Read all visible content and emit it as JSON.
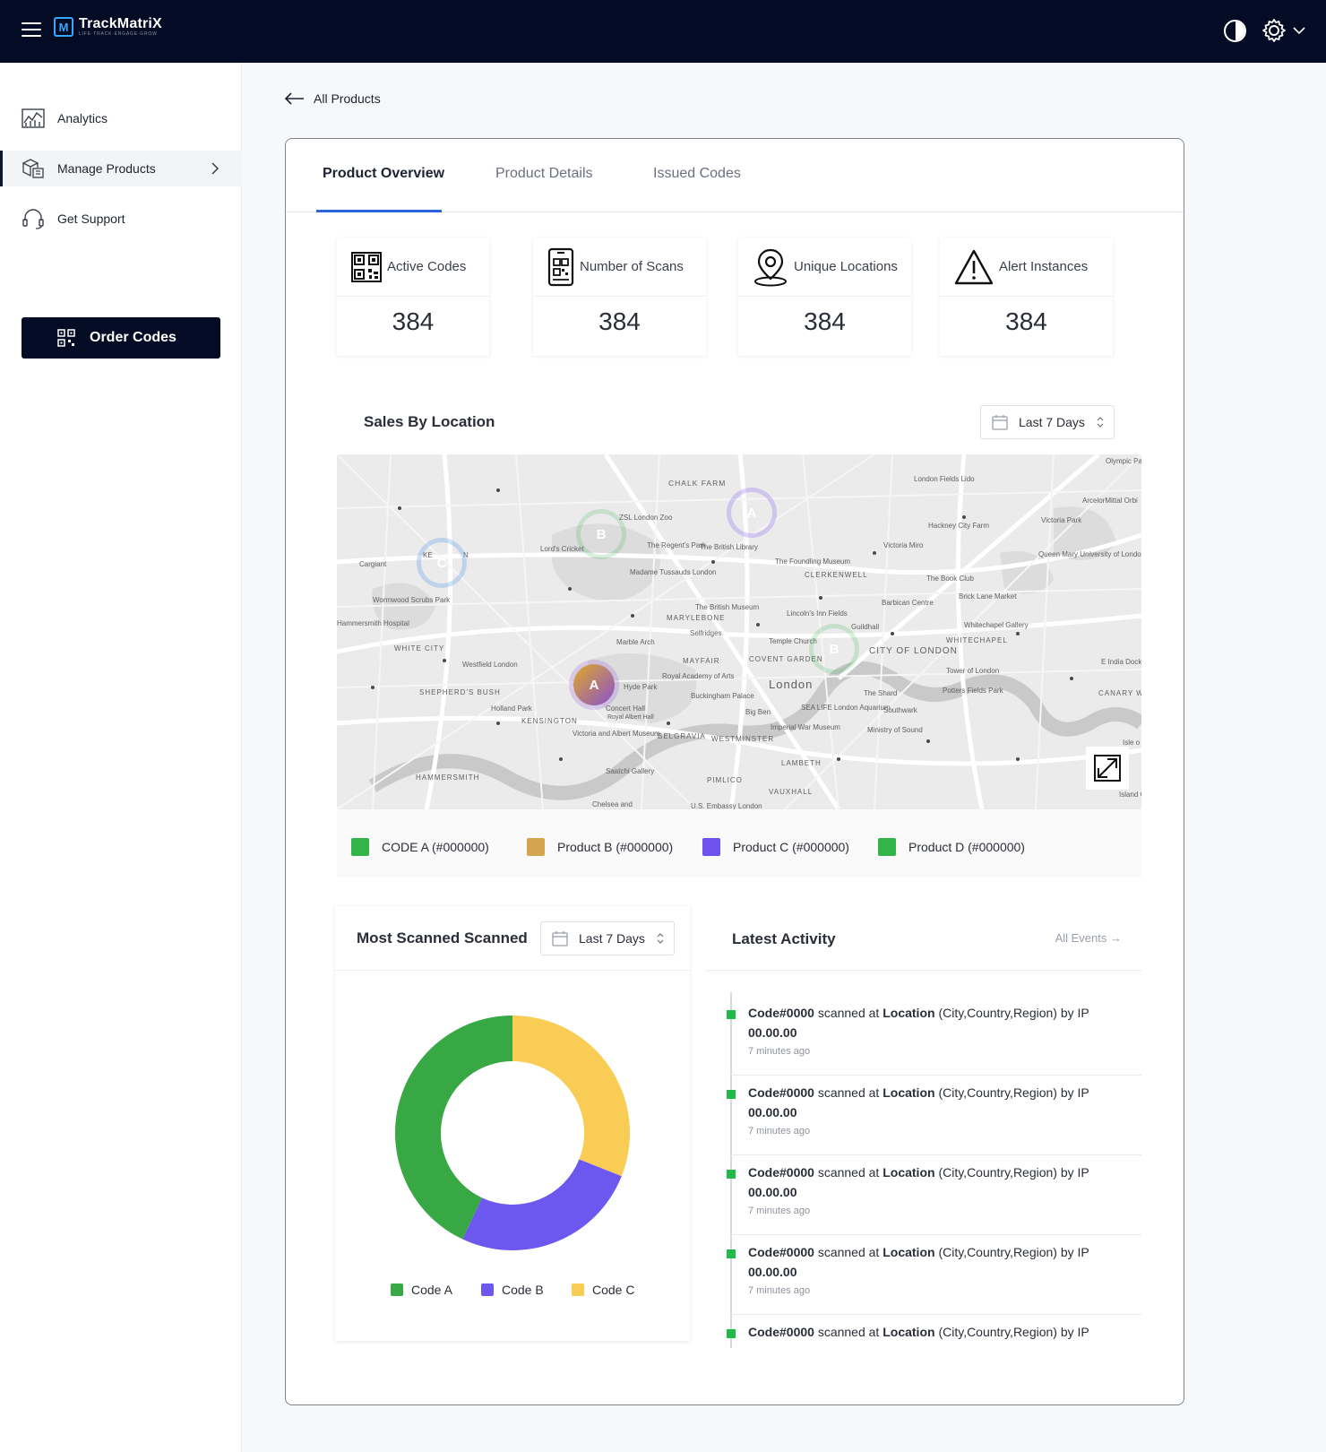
{
  "app": {
    "name": "TrackMatriX",
    "tagline": "LIFE·TRACK·ENGAGE·GROW"
  },
  "sidebar": {
    "items": [
      {
        "label": "Analytics",
        "icon": "analytics-icon"
      },
      {
        "label": "Manage Products",
        "icon": "boxes-icon"
      },
      {
        "label": "Get Support",
        "icon": "headset-icon"
      }
    ],
    "order_button": "Order Codes"
  },
  "back_link": "All Products",
  "tabs": [
    "Product Overview",
    "Product Details",
    "Issued Codes"
  ],
  "stats": [
    {
      "label": "Active Codes",
      "value": "384",
      "icon": "qr-code-icon"
    },
    {
      "label": "Number of Scans",
      "value": "384",
      "icon": "phone-scan-icon"
    },
    {
      "label": "Unique Locations",
      "value": "384",
      "icon": "location-pin-icon"
    },
    {
      "label": "Alert Instances",
      "value": "384",
      "icon": "warning-icon"
    }
  ],
  "sales_by_location": {
    "title": "Sales By Location",
    "range": "Last 7 Days",
    "map_labels": {
      "l1": "CHALK FARM",
      "l2": "ZSL London Zoo",
      "l3": "The British Library",
      "l4": "London Fields Lido",
      "l5": "Hackney City Farm",
      "l6": "Victoria Park",
      "l7": "Olympic Pa",
      "l8": "ArcelorMittal Orbi",
      "l9": "Cargiant",
      "l10": "Lord's Cricket",
      "l11": "The Regent's Park",
      "l12": "Madame Tussauds London",
      "l13": "The Foundling Museum",
      "l14": "Victoria Miro",
      "l15": "CLERKENWELL",
      "l16": "Queen Mary University of London",
      "l17": "The Book Club",
      "l18": "Brick Lane Market",
      "l19": "Wormwood Scrubs Park",
      "l20": "The British Museum",
      "l21": "Barbican Centre",
      "l22": "Whitechapel Gallery",
      "l23": "MARYLEBONE",
      "l24": "Selfridges",
      "l25": "Lincoln's Inn Fields",
      "l26": "WHITECHAPEL",
      "l27": "Hammersmith Hospital",
      "l28": "Marble Arch",
      "l29": "Temple Church",
      "l30": "Guildhall",
      "l31": "CITY OF LONDON",
      "l32": "WHITE CITY",
      "l33": "Westfield London",
      "l34": "MAYFAIR",
      "l35": "COVENT GARDEN",
      "l36": "Tower of London",
      "l37": "E India Dock Rd",
      "l38": "Royal Academy of Arts",
      "l39": "London",
      "l40": "SHEPHERD'S BUSH",
      "l41": "Hyde Park",
      "l42": "Buckingham Palace",
      "l43": "The Shard",
      "l44": "Potters Fields Park",
      "l45": "CANARY WHAR",
      "l46": "Holland Park",
      "l47": "Concert Hall",
      "l48": "Royal Albert Hall",
      "l49": "Big Ben",
      "l50": "SEA LIFE London Aquarium",
      "l51": "Southwark",
      "l52": "KENSINGTON",
      "l53": "Imperial War Museum",
      "l54": "Ministry of Sound",
      "l55": "Victoria and Albert Museum",
      "l56": "BELGRAVIA",
      "l57": "WESTMINSTER",
      "l58": "Isle o",
      "l59": "HAMMERSMITH",
      "l60": "Saatchi Gallery",
      "l61": "LAMBETH",
      "l62": "PIMLICO",
      "l63": "VAUXHALL",
      "l64": "Island Ga",
      "l65": "Chelsea and",
      "l66": "U.S. Embassy London",
      "l67": "KE",
      "l68": "N"
    },
    "markers": [
      {
        "letter": "C",
        "color": "#3d86f0"
      },
      {
        "letter": "B",
        "color": "#33b449"
      },
      {
        "letter": "A",
        "color": "#7b4ff0"
      },
      {
        "letter": "A",
        "color": "#d19a3d"
      },
      {
        "letter": "B",
        "color": "#33b449"
      }
    ],
    "legend": [
      {
        "label": "CODE A (#000000)",
        "color": "#33b449"
      },
      {
        "label": "Product B (#000000)",
        "color": "#d4a44e"
      },
      {
        "label": "Product C (#000000)",
        "color": "#6f52ee"
      },
      {
        "label": "Product D (#000000)",
        "color": "#33b449"
      }
    ]
  },
  "most_scanned": {
    "title": "Most Scanned Scanned",
    "range": "Last 7 Days",
    "chart_data": {
      "type": "pie",
      "categories": [
        "Code A",
        "Code B",
        "Code C"
      ],
      "values": [
        43,
        26,
        31
      ],
      "colors": [
        "#37a843",
        "#6c57ef",
        "#f8cc55"
      ]
    }
  },
  "latest_activity": {
    "title": "Latest Activity",
    "all_events": "All Events →",
    "items": [
      {
        "code": "Code#0000",
        "mid": " scanned at ",
        "loc": "Location",
        "rest": " (City,Country,Region) by IP ",
        "ip": "00.00.00",
        "time": "7 minutes ago"
      },
      {
        "code": "Code#0000",
        "mid": " scanned at ",
        "loc": "Location",
        "rest": " (City,Country,Region) by IP ",
        "ip": "00.00.00",
        "time": "7 minutes ago"
      },
      {
        "code": "Code#0000",
        "mid": " scanned at ",
        "loc": "Location",
        "rest": " (City,Country,Region) by IP ",
        "ip": "00.00.00",
        "time": "7 minutes ago"
      },
      {
        "code": "Code#0000",
        "mid": " scanned at ",
        "loc": "Location",
        "rest": " (City,Country,Region) by IP ",
        "ip": "00.00.00",
        "time": "7 minutes ago"
      },
      {
        "code": "Code#0000",
        "mid": " scanned at ",
        "loc": "Location",
        "rest": " (City,Country,Region) by IP",
        "ip": "",
        "time": ""
      }
    ]
  }
}
